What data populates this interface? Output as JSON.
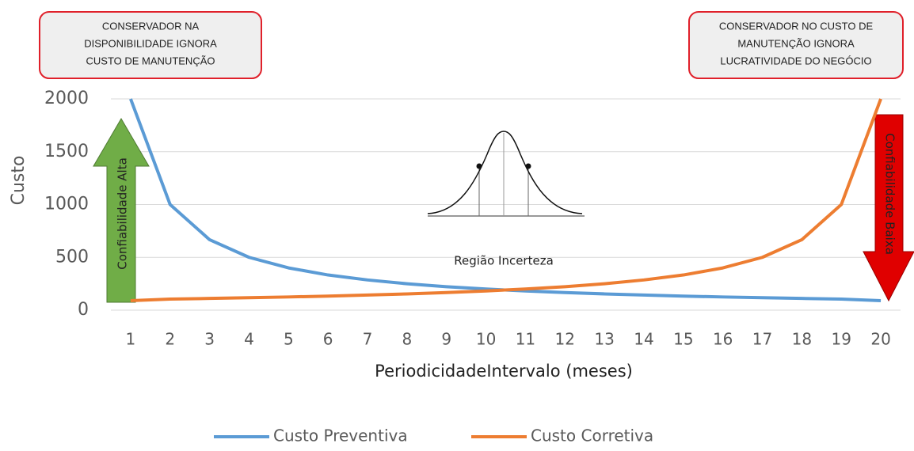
{
  "chart_data": {
    "type": "line",
    "y_label": "Custo",
    "x_label": "PeriodicidadeIntervalo (meses)",
    "categories": [
      "1",
      "2",
      "3",
      "4",
      "5",
      "6",
      "7",
      "8",
      "9",
      "10",
      "11",
      "12",
      "13",
      "14",
      "15",
      "16",
      "17",
      "18",
      "19",
      "20"
    ],
    "series": [
      {
        "name": "Custo Preventiva",
        "color": "#5b9bd5",
        "values": [
          2000,
          1000,
          667,
          500,
          400,
          333,
          286,
          250,
          222,
          200,
          182,
          167,
          154,
          143,
          133,
          125,
          118,
          111,
          105,
          90
        ]
      },
      {
        "name": "Custo Corretiva",
        "color": "#ed7d31",
        "values": [
          90,
          105,
          111,
          118,
          125,
          133,
          143,
          154,
          167,
          182,
          200,
          222,
          250,
          286,
          333,
          400,
          500,
          667,
          1000,
          2000
        ]
      }
    ],
    "ylim": [
      0,
      2000
    ],
    "yticks": [
      0,
      500,
      1000,
      1500,
      2000
    ],
    "grid": true,
    "legend": "bottom",
    "annotations": [
      {
        "lines": [
          "CONSERVADOR NA",
          "DISPONIBILIDADE IGNORA",
          "CUSTO DE MANUTENÇÃO"
        ]
      },
      {
        "lines": [
          "CONSERVADOR NO CUSTO DE",
          "MANUTENÇÃO IGNORA",
          "LUCRATIVIDADE DO NEGÓCIO"
        ]
      }
    ],
    "arrows": [
      {
        "text": "Confiabilidade Alta",
        "color": "#70ad47",
        "direction": "up"
      },
      {
        "text": "Confiabilidade Baixa",
        "color": "#e00000",
        "direction": "down"
      }
    ],
    "inset_label": "Região Incerteza"
  }
}
